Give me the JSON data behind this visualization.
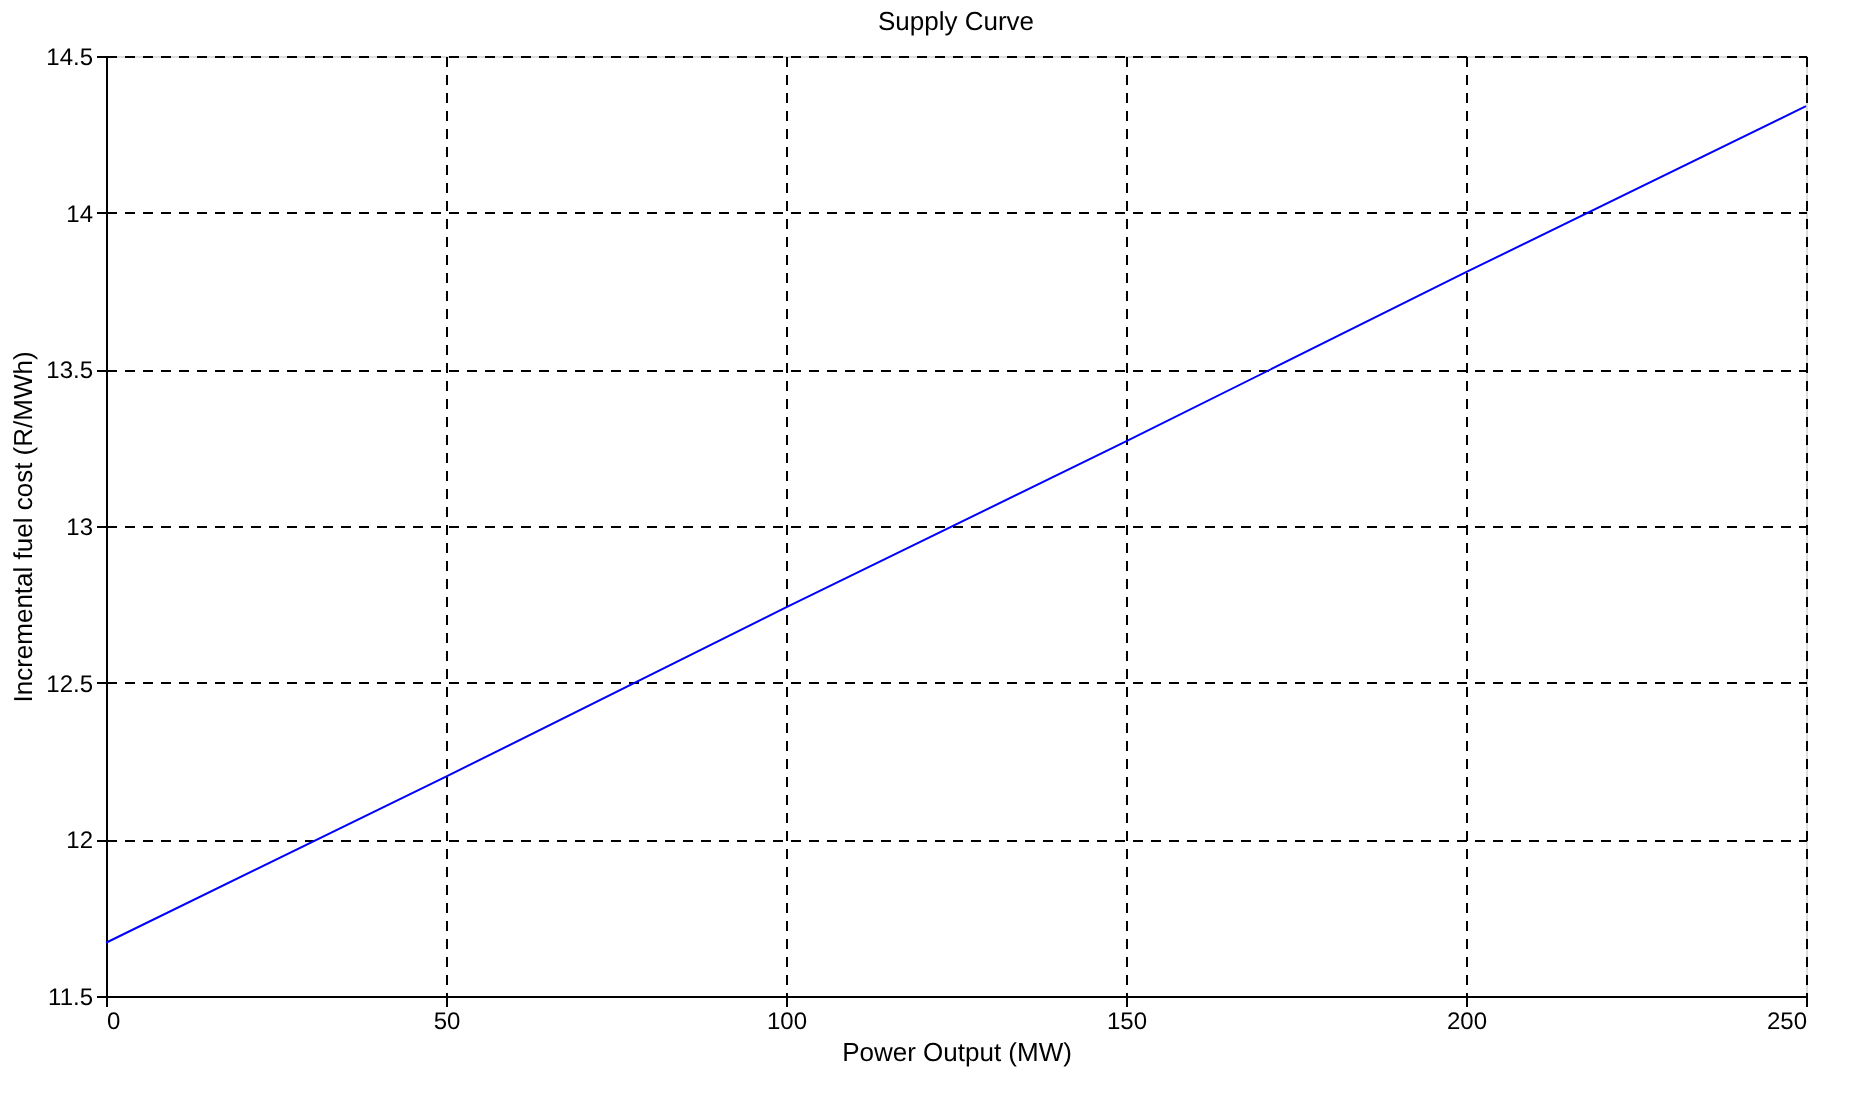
{
  "chart_data": {
    "type": "line",
    "title": "Supply Curve",
    "xlabel": "Power Output (MW)",
    "ylabel": "Incremental fuel cost (R/MWh)",
    "x": [
      0,
      50,
      100,
      150,
      200,
      250
    ],
    "series": [
      {
        "color": "#0000ff",
        "values": [
          11.67,
          12.2,
          12.74,
          13.27,
          13.81,
          14.34
        ]
      }
    ],
    "xlim": [
      0,
      250
    ],
    "xticks": [
      0,
      50,
      100,
      150,
      200,
      250
    ],
    "ylim": [
      11.5,
      14.5
    ],
    "yticks": [
      11.5,
      12,
      12.5,
      13,
      13.5,
      14,
      14.5
    ],
    "grid": true,
    "line_style": "solid",
    "marker": "none"
  }
}
